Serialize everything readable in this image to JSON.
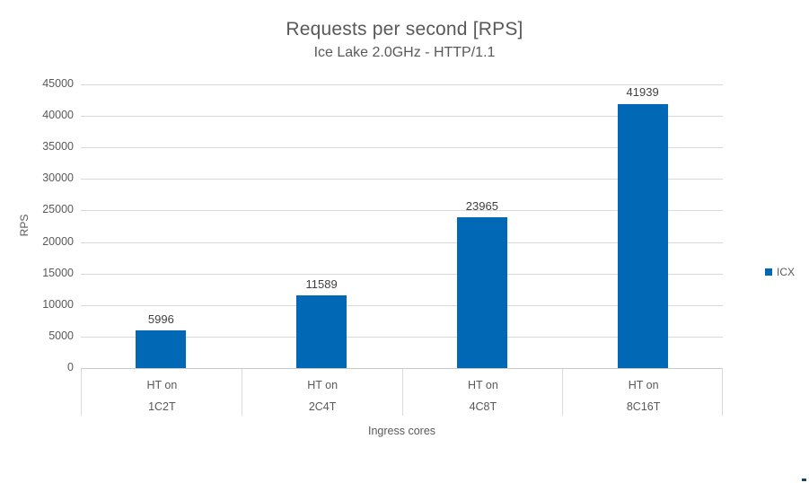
{
  "chart_data": {
    "type": "bar",
    "title": "Requests per second [RPS]",
    "subtitle": "Ice Lake 2.0GHz - HTTP/1.1",
    "xlabel": "Ingress cores",
    "ylabel": "RPS",
    "categories": [
      {
        "line1": "HT on",
        "line2": "1C2T"
      },
      {
        "line1": "HT on",
        "line2": "2C4T"
      },
      {
        "line1": "HT on",
        "line2": "4C8T"
      },
      {
        "line1": "HT on",
        "line2": "8C16T"
      }
    ],
    "series": [
      {
        "name": "ICX",
        "color": "#0068b5",
        "values": [
          5996,
          11589,
          23965,
          41939
        ]
      }
    ],
    "ylim": [
      0,
      45000
    ],
    "yticks": [
      0,
      5000,
      10000,
      15000,
      20000,
      25000,
      30000,
      35000,
      40000,
      45000
    ],
    "grid": true,
    "legend_position": "right"
  },
  "colors": {
    "bar": "#0068b5",
    "heading_text": "#595959",
    "axis_text": "#595959",
    "value_label_text": "#404040",
    "gridline": "#d9d9d9",
    "axis_line": "#c9c9c9"
  }
}
